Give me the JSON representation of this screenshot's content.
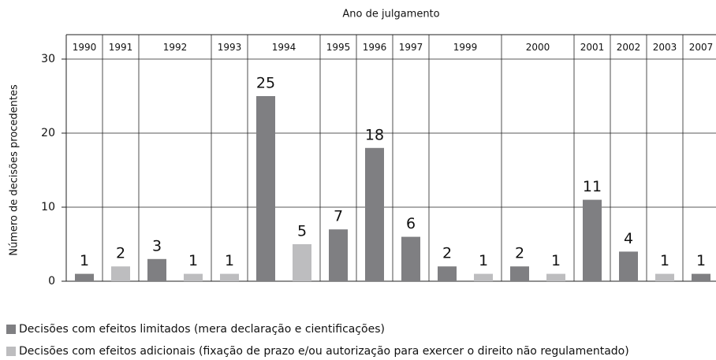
{
  "chart_data": {
    "type": "bar",
    "title": "Ano de julgamento",
    "y_label": "Número de decisões  procedentes",
    "categories": [
      "1990",
      "1991",
      "1992",
      null,
      "1993",
      "1994",
      null,
      "1995",
      "1996",
      "1997",
      "1999",
      null,
      "2000",
      null,
      "2001",
      "2002",
      "2003",
      "2007"
    ],
    "series": [
      {
        "name": "Decisões com efeitos limitados (mera declaração e cientificações)",
        "color": "#7f7f82",
        "values": [
          1,
          null,
          3,
          null,
          null,
          25,
          null,
          7,
          18,
          6,
          2,
          null,
          2,
          null,
          11,
          4,
          null,
          1
        ]
      },
      {
        "name": "Decisões com efeitos adicionais (fixação de prazo e/ou autorização para exercer o direito não regulamentado)",
        "color": "#bdbdbf",
        "values": [
          null,
          2,
          null,
          1,
          1,
          null,
          5,
          null,
          null,
          null,
          null,
          1,
          null,
          1,
          null,
          null,
          1,
          null
        ]
      }
    ],
    "ylim": [
      0,
      30
    ],
    "yticks": [
      0,
      10,
      20,
      30
    ],
    "grid": true
  }
}
